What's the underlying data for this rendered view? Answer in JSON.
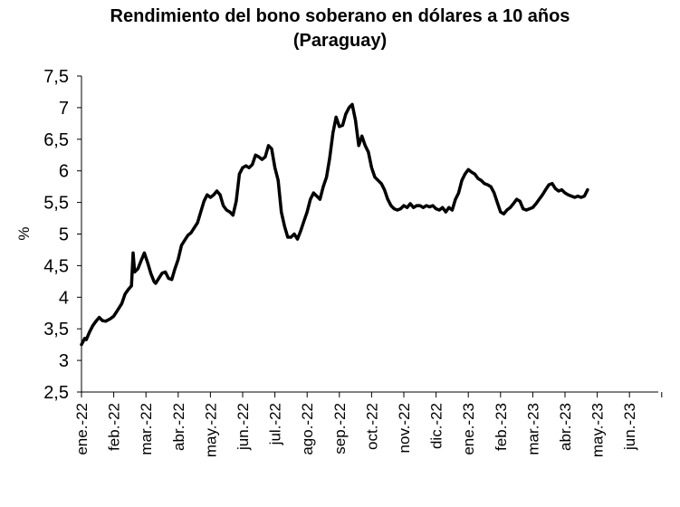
{
  "chart_data": {
    "type": "line",
    "title_line1": "Rendimiento del bono soberano en dólares a 10 años",
    "title_line2": "(Paraguay)",
    "xlabel": "",
    "ylabel": "%",
    "ylim": [
      2.5,
      7.5
    ],
    "y_ticks": [
      "2,5",
      "3",
      "3,5",
      "4",
      "4,5",
      "5",
      "5,5",
      "6",
      "6,5",
      "7",
      "7,5"
    ],
    "x_ticks": [
      "ene.-22",
      "feb.-22",
      "mar.-22",
      "abr.-22",
      "may.-22",
      "jun.-22",
      "jul.-22",
      "ago.-22",
      "sep.-22",
      "oct.-22",
      "nov.-22",
      "dic.-22",
      "ene.-23",
      "feb.-23",
      "mar.-23",
      "abr.-23",
      "may.-23",
      "jun.-23"
    ],
    "grid": false,
    "legend": "none",
    "line_color": "#000000",
    "series": [
      {
        "values": [
          [
            0.0,
            3.25
          ],
          [
            0.05,
            3.3
          ],
          [
            0.1,
            3.35
          ],
          [
            0.15,
            3.33
          ],
          [
            0.25,
            3.45
          ],
          [
            0.35,
            3.55
          ],
          [
            0.45,
            3.62
          ],
          [
            0.55,
            3.68
          ],
          [
            0.65,
            3.63
          ],
          [
            0.75,
            3.62
          ],
          [
            0.9,
            3.66
          ],
          [
            1.0,
            3.7
          ],
          [
            1.1,
            3.78
          ],
          [
            1.25,
            3.9
          ],
          [
            1.35,
            4.05
          ],
          [
            1.45,
            4.12
          ],
          [
            1.55,
            4.18
          ],
          [
            1.6,
            4.7
          ],
          [
            1.65,
            4.4
          ],
          [
            1.75,
            4.45
          ],
          [
            1.85,
            4.58
          ],
          [
            1.95,
            4.7
          ],
          [
            2.05,
            4.55
          ],
          [
            2.15,
            4.38
          ],
          [
            2.25,
            4.25
          ],
          [
            2.3,
            4.22
          ],
          [
            2.4,
            4.3
          ],
          [
            2.5,
            4.38
          ],
          [
            2.6,
            4.4
          ],
          [
            2.7,
            4.3
          ],
          [
            2.8,
            4.28
          ],
          [
            2.9,
            4.45
          ],
          [
            3.0,
            4.6
          ],
          [
            3.1,
            4.82
          ],
          [
            3.2,
            4.9
          ],
          [
            3.3,
            4.98
          ],
          [
            3.4,
            5.02
          ],
          [
            3.5,
            5.1
          ],
          [
            3.6,
            5.18
          ],
          [
            3.7,
            5.35
          ],
          [
            3.8,
            5.52
          ],
          [
            3.9,
            5.62
          ],
          [
            4.0,
            5.58
          ],
          [
            4.1,
            5.62
          ],
          [
            4.2,
            5.68
          ],
          [
            4.3,
            5.62
          ],
          [
            4.4,
            5.45
          ],
          [
            4.5,
            5.38
          ],
          [
            4.6,
            5.35
          ],
          [
            4.7,
            5.3
          ],
          [
            4.8,
            5.52
          ],
          [
            4.9,
            5.95
          ],
          [
            5.0,
            6.05
          ],
          [
            5.1,
            6.08
          ],
          [
            5.2,
            6.05
          ],
          [
            5.3,
            6.1
          ],
          [
            5.4,
            6.25
          ],
          [
            5.5,
            6.22
          ],
          [
            5.6,
            6.18
          ],
          [
            5.7,
            6.22
          ],
          [
            5.8,
            6.4
          ],
          [
            5.9,
            6.35
          ],
          [
            6.0,
            6.05
          ],
          [
            6.1,
            5.85
          ],
          [
            6.2,
            5.35
          ],
          [
            6.3,
            5.12
          ],
          [
            6.4,
            4.95
          ],
          [
            6.5,
            4.95
          ],
          [
            6.6,
            5.0
          ],
          [
            6.7,
            4.92
          ],
          [
            6.8,
            5.05
          ],
          [
            6.9,
            5.2
          ],
          [
            7.0,
            5.35
          ],
          [
            7.1,
            5.55
          ],
          [
            7.2,
            5.65
          ],
          [
            7.3,
            5.6
          ],
          [
            7.4,
            5.55
          ],
          [
            7.5,
            5.75
          ],
          [
            7.6,
            5.9
          ],
          [
            7.7,
            6.2
          ],
          [
            7.8,
            6.6
          ],
          [
            7.9,
            6.85
          ],
          [
            8.0,
            6.7
          ],
          [
            8.1,
            6.72
          ],
          [
            8.2,
            6.9
          ],
          [
            8.3,
            7.0
          ],
          [
            8.4,
            7.05
          ],
          [
            8.5,
            6.8
          ],
          [
            8.6,
            6.4
          ],
          [
            8.7,
            6.55
          ],
          [
            8.8,
            6.4
          ],
          [
            8.9,
            6.3
          ],
          [
            9.0,
            6.05
          ],
          [
            9.1,
            5.9
          ],
          [
            9.2,
            5.85
          ],
          [
            9.3,
            5.8
          ],
          [
            9.4,
            5.7
          ],
          [
            9.5,
            5.55
          ],
          [
            9.6,
            5.45
          ],
          [
            9.7,
            5.4
          ],
          [
            9.8,
            5.38
          ],
          [
            9.9,
            5.4
          ],
          [
            10.0,
            5.45
          ],
          [
            10.1,
            5.42
          ],
          [
            10.2,
            5.48
          ],
          [
            10.3,
            5.42
          ],
          [
            10.4,
            5.45
          ],
          [
            10.5,
            5.45
          ],
          [
            10.6,
            5.42
          ],
          [
            10.7,
            5.45
          ],
          [
            10.8,
            5.43
          ],
          [
            10.9,
            5.45
          ],
          [
            11.0,
            5.4
          ],
          [
            11.1,
            5.38
          ],
          [
            11.2,
            5.42
          ],
          [
            11.3,
            5.35
          ],
          [
            11.4,
            5.42
          ],
          [
            11.5,
            5.38
          ],
          [
            11.6,
            5.55
          ],
          [
            11.7,
            5.65
          ],
          [
            11.8,
            5.85
          ],
          [
            11.9,
            5.95
          ],
          [
            12.0,
            6.02
          ],
          [
            12.1,
            5.98
          ],
          [
            12.2,
            5.95
          ],
          [
            12.3,
            5.88
          ],
          [
            12.4,
            5.85
          ],
          [
            12.5,
            5.8
          ],
          [
            12.6,
            5.78
          ],
          [
            12.7,
            5.75
          ],
          [
            12.8,
            5.65
          ],
          [
            12.9,
            5.5
          ],
          [
            13.0,
            5.35
          ],
          [
            13.1,
            5.32
          ],
          [
            13.2,
            5.38
          ],
          [
            13.3,
            5.42
          ],
          [
            13.4,
            5.48
          ],
          [
            13.5,
            5.55
          ],
          [
            13.6,
            5.52
          ],
          [
            13.7,
            5.4
          ],
          [
            13.8,
            5.38
          ],
          [
            13.9,
            5.4
          ],
          [
            14.0,
            5.42
          ],
          [
            14.1,
            5.48
          ],
          [
            14.2,
            5.55
          ],
          [
            14.3,
            5.62
          ],
          [
            14.4,
            5.7
          ],
          [
            14.5,
            5.78
          ],
          [
            14.6,
            5.8
          ],
          [
            14.7,
            5.72
          ],
          [
            14.8,
            5.68
          ],
          [
            14.9,
            5.7
          ],
          [
            15.0,
            5.65
          ],
          [
            15.1,
            5.62
          ],
          [
            15.2,
            5.6
          ],
          [
            15.3,
            5.58
          ],
          [
            15.4,
            5.6
          ],
          [
            15.5,
            5.58
          ],
          [
            15.6,
            5.6
          ],
          [
            15.7,
            5.7
          ]
        ]
      }
    ]
  }
}
